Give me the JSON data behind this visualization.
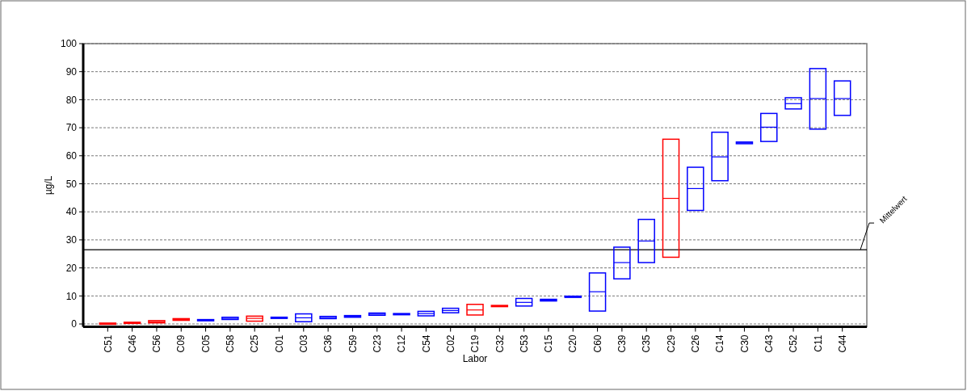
{
  "chart_data": {
    "type": "box",
    "xlabel": "Labor",
    "ylabel": "µg/L",
    "categories": [
      "C51",
      "C46",
      "C56",
      "C09",
      "C05",
      "C58",
      "C25",
      "C01",
      "C03",
      "C36",
      "C59",
      "C23",
      "C12",
      "C54",
      "C02",
      "C19",
      "C32",
      "C53",
      "C15",
      "C20",
      "C60",
      "C39",
      "C35",
      "C29",
      "C26",
      "C14",
      "C30",
      "C43",
      "C52",
      "C11",
      "C44"
    ],
    "colors": [
      "#ff0000",
      "#ff0000",
      "#ff0000",
      "#ff0000",
      "#0000ff",
      "#0000ff",
      "#ff0000",
      "#0000ff",
      "#0000ff",
      "#0000ff",
      "#0000ff",
      "#0000ff",
      "#0000ff",
      "#0000ff",
      "#0000ff",
      "#ff0000",
      "#ff0000",
      "#0000ff",
      "#0000ff",
      "#0000ff",
      "#0000ff",
      "#0000ff",
      "#0000ff",
      "#ff0000",
      "#0000ff",
      "#0000ff",
      "#0000ff",
      "#0000ff",
      "#0000ff",
      "#0000ff",
      "#0000ff"
    ],
    "boxes": [
      {
        "low": 0,
        "q1": 0,
        "median": 0.1,
        "q3": 0.2,
        "high": 0.2
      },
      {
        "low": 0.2,
        "q1": 0.2,
        "median": 0.4,
        "q3": 0.6,
        "high": 0.6
      },
      {
        "low": 0.4,
        "q1": 0.4,
        "median": 0.8,
        "q3": 1.2,
        "high": 1.2
      },
      {
        "low": 1.3,
        "q1": 1.3,
        "median": 1.6,
        "q3": 1.9,
        "high": 1.9
      },
      {
        "low": 1.2,
        "q1": 1.2,
        "median": 1.35,
        "q3": 1.5,
        "high": 1.5
      },
      {
        "low": 1.6,
        "q1": 1.6,
        "median": 2,
        "q3": 2.4,
        "high": 2.4
      },
      {
        "low": 1,
        "q1": 1,
        "median": 2,
        "q3": 2.8,
        "high": 2.8
      },
      {
        "low": 2.1,
        "q1": 2.1,
        "median": 2.2,
        "q3": 2.3,
        "high": 2.3
      },
      {
        "low": 0.8,
        "q1": 0.8,
        "median": 2.2,
        "q3": 3.6,
        "high": 3.6
      },
      {
        "low": 1.9,
        "q1": 1.9,
        "median": 2.3,
        "q3": 2.7,
        "high": 2.7
      },
      {
        "low": 2.4,
        "q1": 2.4,
        "median": 2.7,
        "q3": 3,
        "high": 3
      },
      {
        "low": 3.1,
        "q1": 3.1,
        "median": 3.5,
        "q3": 3.9,
        "high": 3.9
      },
      {
        "low": 3.4,
        "q1": 3.4,
        "median": 3.5,
        "q3": 3.6,
        "high": 3.6
      },
      {
        "low": 2.9,
        "q1": 2.9,
        "median": 3.7,
        "q3": 4.5,
        "high": 4.5
      },
      {
        "low": 4,
        "q1": 4,
        "median": 4.8,
        "q3": 5.6,
        "high": 5.6
      },
      {
        "low": 3.2,
        "q1": 3.2,
        "median": 5,
        "q3": 7,
        "high": 7
      },
      {
        "low": 6.3,
        "q1": 6.3,
        "median": 6.4,
        "q3": 6.5,
        "high": 6.5
      },
      {
        "low": 6.4,
        "q1": 6.4,
        "median": 7.7,
        "q3": 9.1,
        "high": 9.1
      },
      {
        "low": 8.2,
        "q1": 8.2,
        "median": 8.5,
        "q3": 8.8,
        "high": 8.8
      },
      {
        "low": 9.5,
        "q1": 9.5,
        "median": 9.7,
        "q3": 9.9,
        "high": 9.9
      },
      {
        "low": 4.6,
        "q1": 4.6,
        "median": 11.5,
        "q3": 18.2,
        "high": 18.2
      },
      {
        "low": 16.1,
        "q1": 16.1,
        "median": 21.9,
        "q3": 27.4,
        "high": 27.4
      },
      {
        "low": 21.9,
        "q1": 21.9,
        "median": 29.6,
        "q3": 37.3,
        "high": 37.3
      },
      {
        "low": 23.8,
        "q1": 23.8,
        "median": 44.8,
        "q3": 65.9,
        "high": 65.9
      },
      {
        "low": 40.5,
        "q1": 40.5,
        "median": 48.3,
        "q3": 55.9,
        "high": 55.9
      },
      {
        "low": 51.1,
        "q1": 51.1,
        "median": 59.6,
        "q3": 68.4,
        "high": 68.4
      },
      {
        "low": 64.3,
        "q1": 64.3,
        "median": 64.6,
        "q3": 64.9,
        "high": 64.9
      },
      {
        "low": 65.1,
        "q1": 65.1,
        "median": 70.2,
        "q3": 75.1,
        "high": 75.1
      },
      {
        "low": 76.7,
        "q1": 76.7,
        "median": 78.6,
        "q3": 80.7,
        "high": 80.7
      },
      {
        "low": 69.5,
        "q1": 69.5,
        "median": 80.4,
        "q3": 91.1,
        "high": 91.1
      },
      {
        "low": 74.4,
        "q1": 74.4,
        "median": 80.4,
        "q3": 86.7,
        "high": 86.7
      }
    ],
    "ylim": [
      -1,
      100
    ],
    "yticks": [
      0,
      10,
      20,
      30,
      40,
      50,
      60,
      70,
      80,
      90,
      100
    ],
    "grid": "y",
    "ref_lines": [
      {
        "axis": "y",
        "value": 26.5,
        "label": "Mittelwert",
        "color": "#000000"
      }
    ]
  }
}
